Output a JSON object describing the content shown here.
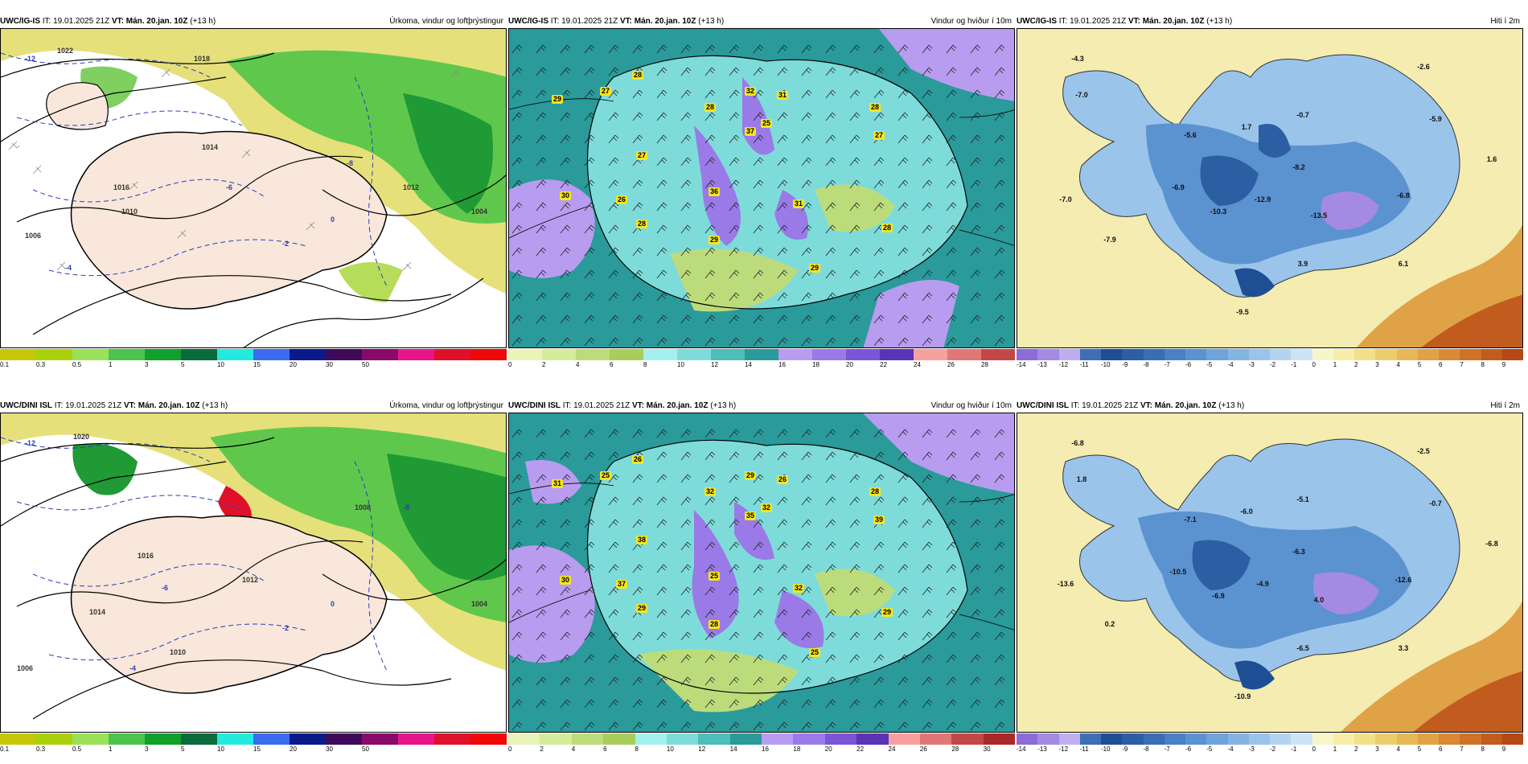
{
  "panels": [
    {
      "model": "UWC/IG-IS",
      "it_label": "IT:",
      "it": "19.01.2025 21Z",
      "vt_label": "VT:",
      "vt": "Mán. 20.jan. 10Z",
      "lead": "(+13 h)",
      "title": "Úrkoma, vindur og loftþrýstingur",
      "scale_ticks": [
        "0.1",
        "0.3",
        "0.5",
        "1",
        "3",
        "5",
        "10",
        "15",
        "20",
        "30",
        "50"
      ],
      "scale_colors": [
        "#c7c707",
        "#a9d10a",
        "#9be05a",
        "#4cc34c",
        "#11a02b",
        "#0a6b3c",
        "#22eadf",
        "#3b6cf0",
        "#0a1a8a",
        "#3f0a5a",
        "#8a0a6b",
        "#e8158a",
        "#e0102a",
        "#f00808"
      ],
      "map_labels": [
        "1022",
        "1018",
        "1016",
        "1014",
        "1012",
        "1010",
        "1006",
        "1004",
        "-12",
        "-8",
        "-6",
        "-4",
        "-2",
        "0"
      ]
    },
    {
      "model": "UWC/IG-IS",
      "it_label": "IT:",
      "it": "19.01.2025 21Z",
      "vt_label": "VT:",
      "vt": "Mán. 20.jan. 10Z",
      "lead": "(+13 h)",
      "title": "Vindur og hviður í 10m",
      "scale_ticks": [
        "0",
        "2",
        "4",
        "6",
        "8",
        "10",
        "12",
        "14",
        "16",
        "18",
        "20",
        "22",
        "24",
        "26",
        "28"
      ],
      "scale_colors": [
        "#e9f5b8",
        "#d4ec9c",
        "#bcdc7c",
        "#a7cd5a",
        "#a4f0ee",
        "#7ddcda",
        "#4fbdb9",
        "#2a9a9a",
        "#b89cf0",
        "#9a7ae6",
        "#7a55d6",
        "#5a34b6",
        "#f7a0a0",
        "#e07777",
        "#c24848"
      ],
      "gusts": [
        "29",
        "27",
        "28",
        "28",
        "32",
        "31",
        "28",
        "27",
        "37",
        "25",
        "27",
        "26",
        "36",
        "31",
        "30",
        "28",
        "29",
        "28",
        "29"
      ]
    },
    {
      "model": "UWC/IG-IS",
      "it_label": "IT:",
      "it": "19.01.2025 21Z",
      "vt_label": "VT:",
      "vt": "Mán. 20.jan. 10Z",
      "lead": "(+13 h)",
      "title": "Hiti í 2m",
      "scale_ticks": [
        "-14",
        "-13",
        "-12",
        "-11",
        "-10",
        "-9",
        "-8",
        "-7",
        "-6",
        "-5",
        "-4",
        "-3",
        "-2",
        "-1",
        "0",
        "1",
        "2",
        "3",
        "4",
        "5",
        "6",
        "7",
        "8",
        "9"
      ],
      "scale_colors": [
        "#8c6cd8",
        "#a48ae2",
        "#bfaeef",
        "#3d6fb7",
        "#1e4f94",
        "#2c5ea4",
        "#3a6eb4",
        "#4a80c4",
        "#5b92d0",
        "#6ea4da",
        "#84b4e2",
        "#9ac4ea",
        "#b2d4f0",
        "#cce4f6",
        "#f6f6c8",
        "#f6eea8",
        "#f2e08a",
        "#eccd6e",
        "#e6b858",
        "#e0a246",
        "#d88a36",
        "#ce7228",
        "#c25c1e",
        "#b44816"
      ],
      "temps": [
        "-4.3",
        "-2.6",
        "-7.0",
        "-5.9",
        "1.7",
        "-0.7",
        "-5.6",
        "1.6",
        "-8.2",
        "-6.9",
        "-6.8",
        "-7.0",
        "-12.9",
        "-10.3",
        "-13.5",
        "-7.9",
        "3.9",
        "6.1",
        "-9.5"
      ]
    },
    {
      "model": "UWC/DINI ISL",
      "it_label": "IT:",
      "it": "19.01.2025 21Z",
      "vt_label": "VT:",
      "vt": "Mán. 20.jan. 10Z",
      "lead": "(+13 h)",
      "title": "Úrkoma, vindur og loftþrýstingur",
      "scale_ticks": [
        "0.1",
        "0.3",
        "0.5",
        "1",
        "3",
        "5",
        "10",
        "15",
        "20",
        "30",
        "50"
      ],
      "scale_colors": [
        "#c7c707",
        "#a9d10a",
        "#9be05a",
        "#4cc34c",
        "#11a02b",
        "#0a6b3c",
        "#22eadf",
        "#3b6cf0",
        "#0a1a8a",
        "#3f0a5a",
        "#8a0a6b",
        "#e8158a",
        "#e0102a",
        "#f00808"
      ],
      "map_labels": [
        "1020",
        "1016",
        "1014",
        "1012",
        "1010",
        "1008",
        "1006",
        "1004",
        "-12",
        "-8",
        "-6",
        "-4",
        "-2",
        "0"
      ]
    },
    {
      "model": "UWC/DINI ISL",
      "it_label": "IT:",
      "it": "19.01.2025 21Z",
      "vt_label": "VT:",
      "vt": "Mán. 20.jan. 10Z",
      "lead": "(+13 h)",
      "title": "Vindur og hviður í 10m",
      "scale_ticks": [
        "0",
        "2",
        "4",
        "6",
        "8",
        "10",
        "12",
        "14",
        "16",
        "18",
        "20",
        "22",
        "24",
        "26",
        "28",
        "30"
      ],
      "scale_colors": [
        "#e9f5b8",
        "#d4ec9c",
        "#bcdc7c",
        "#a7cd5a",
        "#a4f0ee",
        "#7ddcda",
        "#4fbdb9",
        "#2a9a9a",
        "#b89cf0",
        "#9a7ae6",
        "#7a55d6",
        "#5a34b6",
        "#f7a0a0",
        "#e07777",
        "#c24848",
        "#a82828"
      ],
      "gusts": [
        "31",
        "25",
        "26",
        "32",
        "29",
        "26",
        "28",
        "39",
        "35",
        "32",
        "38",
        "37",
        "25",
        "32",
        "30",
        "29",
        "28",
        "29",
        "25"
      ]
    },
    {
      "model": "UWC/DINI ISL",
      "it_label": "IT:",
      "it": "19.01.2025 21Z",
      "vt_label": "VT:",
      "vt": "Mán. 20.jan. 10Z",
      "lead": "(+13 h)",
      "title": "Hiti í 2m",
      "scale_ticks": [
        "-14",
        "-13",
        "-12",
        "-11",
        "-10",
        "-9",
        "-8",
        "-7",
        "-6",
        "-5",
        "-4",
        "-3",
        "-2",
        "-1",
        "0",
        "1",
        "2",
        "3",
        "4",
        "5",
        "6",
        "7",
        "8",
        "9"
      ],
      "scale_colors": [
        "#8c6cd8",
        "#a48ae2",
        "#bfaeef",
        "#3d6fb7",
        "#1e4f94",
        "#2c5ea4",
        "#3a6eb4",
        "#4a80c4",
        "#5b92d0",
        "#6ea4da",
        "#84b4e2",
        "#9ac4ea",
        "#b2d4f0",
        "#cce4f6",
        "#f6f6c8",
        "#f6eea8",
        "#f2e08a",
        "#eccd6e",
        "#e6b858",
        "#e0a246",
        "#d88a36",
        "#ce7228",
        "#c25c1e",
        "#b44816"
      ],
      "temps": [
        "-6.8",
        "-2.5",
        "1.8",
        "-0.7",
        "-6.0",
        "-5.1",
        "-7.1",
        "-6.8",
        "-6.3",
        "-10.5",
        "-12.6",
        "-13.6",
        "-4.9",
        "-6.9",
        "4.0",
        "0.2",
        "-6.5",
        "3.3",
        "-10.9"
      ]
    }
  ]
}
